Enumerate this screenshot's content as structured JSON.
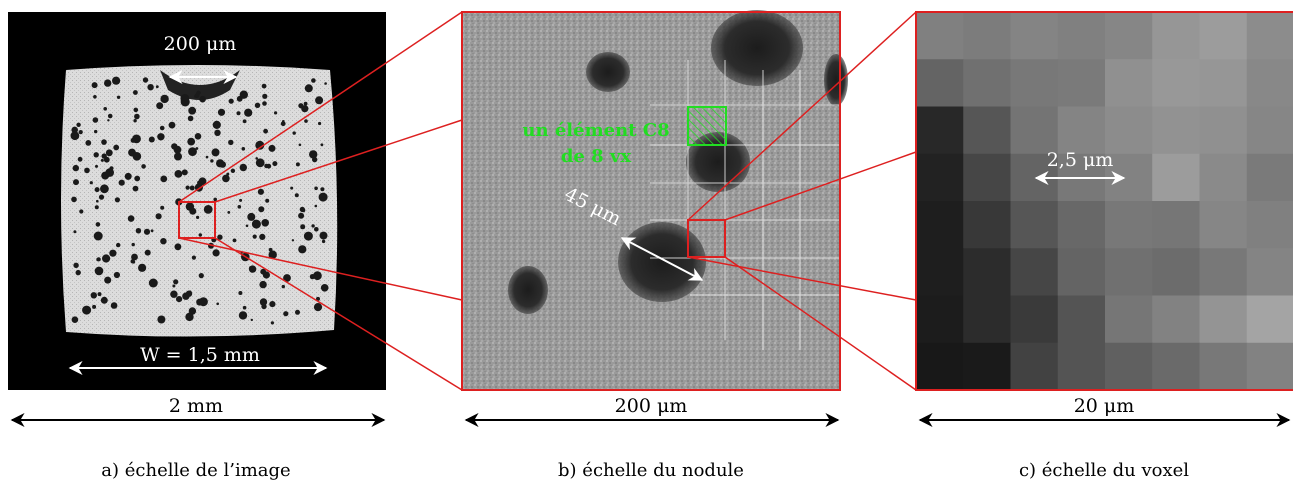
{
  "panels": [
    {
      "id": "a",
      "caption": "a) échelle de l’image",
      "scale_label": "2 mm",
      "annotations": {
        "top_width": "200 μm",
        "width_label": "W = 1,5 mm"
      }
    },
    {
      "id": "b",
      "caption": "b) échelle du nodule",
      "scale_label": "200 μm",
      "annotations": {
        "element_line1": "un élément C8",
        "element_line2": "de 8 vx",
        "nodule_size": "45 μm"
      }
    },
    {
      "id": "c",
      "caption": "c) échelle du voxel",
      "scale_label": "20 μm",
      "annotations": {
        "voxel_size": "2,5 μm"
      }
    }
  ],
  "voxel_grid": {
    "rows": 8,
    "cols": 8,
    "gray_levels": [
      [
        128,
        124,
        132,
        128,
        134,
        150,
        156,
        140
      ],
      [
        100,
        112,
        120,
        122,
        144,
        152,
        150,
        136
      ],
      [
        40,
        86,
        116,
        132,
        140,
        146,
        144,
        134
      ],
      [
        34,
        70,
        100,
        120,
        130,
        156,
        138,
        122
      ],
      [
        30,
        56,
        86,
        104,
        120,
        118,
        134,
        128
      ],
      [
        30,
        44,
        70,
        100,
        112,
        108,
        120,
        132
      ],
      [
        28,
        44,
        58,
        84,
        118,
        130,
        148,
        164
      ],
      [
        24,
        26,
        66,
        84,
        96,
        106,
        120,
        130
      ]
    ]
  },
  "colors": {
    "frame": "#dd2020",
    "highlight": "#22dd22",
    "annotation": "#ffffff"
  }
}
